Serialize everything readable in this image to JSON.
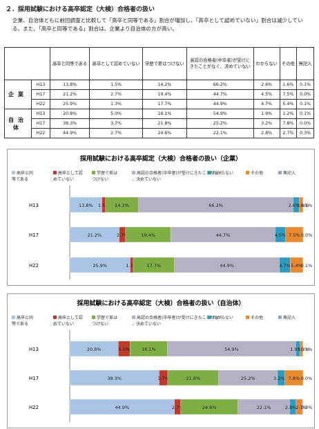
{
  "doc_title": "２．採用試験における高卒認定（大検）合格者の扱い",
  "intro": "企業、自治体ともに前回調査と比較して「高卒と同等である」割合が増加し、「高卒として認めていない」割合は減少している。また、「高卒と同等である」割合は、企業より自治体の方が高い。",
  "table": {
    "headers": [
      "高卒と同等である",
      "高卒として認めていない",
      "学歴で差はつけない",
      "高認の合格者(中卒者)が受けにきたことがなく、決めていない",
      "わからない",
      "その他",
      "無記入"
    ],
    "groups": [
      {
        "name": "企業",
        "rows": [
          {
            "year": "H13",
            "cells": [
              "13.8%",
              "1.5%",
              "14.2%",
              "66.2%",
              "2.6%",
              "1.6%",
              "0.1%"
            ]
          },
          {
            "year": "H17",
            "cells": [
              "21.2%",
              "2.7%",
              "19.4%",
              "44.7%",
              "4.5%",
              "7.5%",
              "0.0%"
            ]
          },
          {
            "year": "H22",
            "cells": [
              "25.9%",
              "1.3%",
              "17.7%",
              "44.9%",
              "4.7%",
              "5.4%",
              "0.1%"
            ]
          }
        ]
      },
      {
        "name": "自治体",
        "rows": [
          {
            "year": "H13",
            "cells": [
              "20.8%",
              "5.0%",
              "16.1%",
              "54.9%",
              "1.9%",
              "1.2%",
              "0.1%"
            ]
          },
          {
            "year": "H17",
            "cells": [
              "38.3%",
              "3.7%",
              "21.8%",
              "25.2%",
              "3.2%",
              "7.8%",
              "0.0%"
            ]
          },
          {
            "year": "H22",
            "cells": [
              "44.9%",
              "2.7%",
              "24.6%",
              "22.1%",
              "2.8%",
              "2.7%",
              "0.3%"
            ]
          }
        ]
      }
    ]
  },
  "chart_data": [
    {
      "type": "bar",
      "orientation": "horizontal",
      "stacked": "percent",
      "title": "採用試験における高卒認定（大検）合格者の扱い（企業）",
      "legend_position": "top",
      "categories": [
        "H13",
        "H17",
        "H22"
      ],
      "series": [
        {
          "name": "高卒と同等である",
          "color": "#a9c4e4",
          "values": [
            13.8,
            21.2,
            25.9
          ]
        },
        {
          "name": "高卒として認めていない",
          "color": "#c0392b",
          "values": [
            1.5,
            2.7,
            1.3
          ]
        },
        {
          "name": "学歴で差はつけない",
          "color": "#7fae44",
          "values": [
            14.2,
            19.4,
            17.7
          ]
        },
        {
          "name": "高認の合格者(中卒者)が受けにきたことがなく、決めていない",
          "color": "#b6b0c4",
          "values": [
            66.2,
            44.7,
            44.9
          ]
        },
        {
          "name": "わからない",
          "color": "#2e9bbf",
          "values": [
            2.6,
            4.5,
            4.7
          ]
        },
        {
          "name": "その他",
          "color": "#ea8a2e",
          "values": [
            1.6,
            7.5,
            5.4
          ]
        },
        {
          "name": "無記入",
          "color": "#8fa6cc",
          "values": [
            0.1,
            0.0,
            0.1
          ]
        }
      ],
      "labels": [
        [
          "13.8%",
          "1.5%",
          "14.2%",
          "66.2%",
          "2.6%",
          "1.6%",
          "0.1%"
        ],
        [
          "21.2%",
          "2.7%",
          "19.4%",
          "44.7%",
          "4.5%",
          "7.5%",
          "0.0%"
        ],
        [
          "25.9%",
          "1.3%",
          "17.7%",
          "44.9%",
          "4.7%",
          "5.4%",
          "0.1%"
        ]
      ]
    },
    {
      "type": "bar",
      "orientation": "horizontal",
      "stacked": "percent",
      "title": "採用試験における高卒認定（大検）合格者の扱い（自治体）",
      "legend_position": "top",
      "categories": [
        "H13",
        "H17",
        "H22"
      ],
      "series": [
        {
          "name": "高卒と同等である",
          "color": "#a9c4e4",
          "values": [
            20.8,
            38.3,
            44.9
          ]
        },
        {
          "name": "高卒として認めていない",
          "color": "#c0392b",
          "values": [
            5.0,
            3.7,
            2.7
          ]
        },
        {
          "name": "学歴で差はつけない",
          "color": "#7fae44",
          "values": [
            16.1,
            21.8,
            24.6
          ]
        },
        {
          "name": "高認の合格者(中卒者)が受けにきたことがなく、決めていない",
          "color": "#b6b0c4",
          "values": [
            54.9,
            25.2,
            22.1
          ]
        },
        {
          "name": "わからない",
          "color": "#2e9bbf",
          "values": [
            1.9,
            3.2,
            2.8
          ]
        },
        {
          "name": "その他",
          "color": "#ea8a2e",
          "values": [
            1.2,
            7.8,
            2.7
          ]
        },
        {
          "name": "無記入",
          "color": "#8fa6cc",
          "values": [
            0.1,
            0.0,
            0.3
          ]
        }
      ],
      "labels": [
        [
          "20.8%",
          "5.0%",
          "16.1%",
          "54.9%",
          "1.9%",
          "1.2%",
          "0.1%"
        ],
        [
          "38.3%",
          "3.7%",
          "21.8%",
          "25.2%",
          "3.2%",
          "7.8%",
          "0.0%"
        ],
        [
          "44.9%",
          "2.7%",
          "24.6%",
          "22.1%",
          "2.8%",
          "2.7%",
          "0.3%"
        ]
      ]
    }
  ]
}
